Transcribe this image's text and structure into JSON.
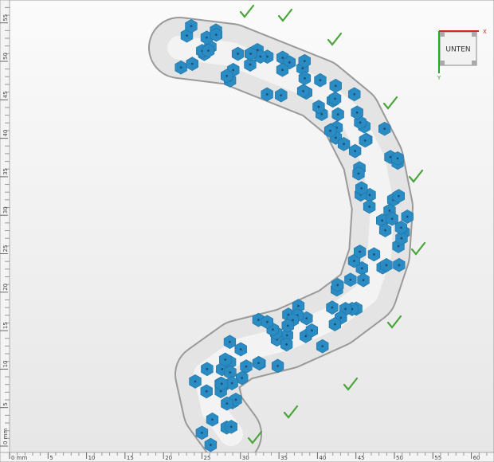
{
  "view_cube": {
    "label": "UNTEN",
    "x_axis": "X",
    "y_axis": "Y"
  },
  "ruler": {
    "bottom": [
      "0 mm",
      "5",
      "10",
      "15",
      "20",
      "25",
      "30",
      "35",
      "40",
      "45",
      "50",
      "55",
      "60"
    ],
    "left": [
      "0 mm",
      "5",
      "10",
      "15",
      "20",
      "25",
      "30",
      "35",
      "40",
      "45",
      "50",
      "55"
    ]
  }
}
